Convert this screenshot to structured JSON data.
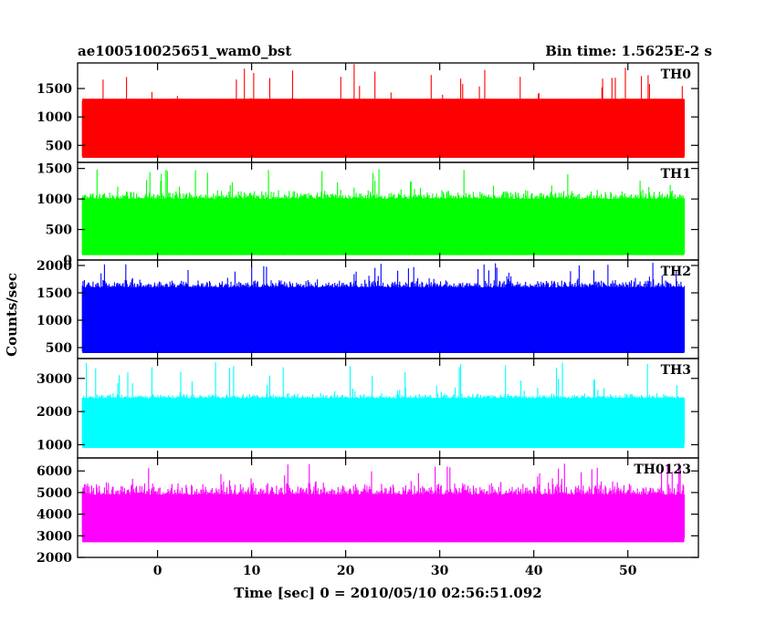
{
  "header": {
    "left_title": "ae100510025651_wam0_bst",
    "right_title": "Bin time: 1.5625E-2 s"
  },
  "chart_data": {
    "type": "line",
    "xlabel": "Time [sec] 0 = 2010/05/10 02:56:51.092",
    "ylabel": "Counts/sec",
    "bin_time_s": 0.015625,
    "xlim": [
      -8.5,
      57.5
    ],
    "x_ticks": [
      0,
      10,
      20,
      30,
      40,
      50
    ],
    "x_data_range": [
      -8,
      56
    ],
    "panels": [
      {
        "name": "TH0",
        "color": "#ff0000",
        "ylim": [
          200,
          1950
        ],
        "y_ticks": [
          500,
          1000,
          1500
        ],
        "level": [
          280,
          1320
        ],
        "typical_low": 300,
        "typical_high": 1200,
        "spike_max": 1950
      },
      {
        "name": "TH1",
        "color": "#00ff00",
        "ylim": [
          0,
          1600
        ],
        "y_ticks": [
          0,
          500,
          1000,
          1500
        ],
        "level": [
          80,
          1000
        ],
        "typical_low": 100,
        "typical_high": 1100,
        "spike_max": 1500
      },
      {
        "name": "TH2",
        "color": "#0000ff",
        "ylim": [
          300,
          2100
        ],
        "y_ticks": [
          500,
          1000,
          1500,
          2000
        ],
        "level": [
          400,
          1600
        ],
        "typical_low": 500,
        "typical_high": 1700,
        "spike_max": 2050
      },
      {
        "name": "TH3",
        "color": "#00ffff",
        "ylim": [
          600,
          3600
        ],
        "y_ticks": [
          1000,
          2000,
          3000
        ],
        "level": [
          900,
          2400
        ],
        "typical_low": 1000,
        "typical_high": 2500,
        "spike_max": 3500
      },
      {
        "name": "TH0123",
        "color": "#ff00ff",
        "ylim": [
          2000,
          6600
        ],
        "y_ticks": [
          2000,
          3000,
          4000,
          5000,
          6000
        ],
        "level": [
          2700,
          4900
        ],
        "typical_low": 2800,
        "typical_high": 5300,
        "spike_max": 6400
      }
    ]
  }
}
